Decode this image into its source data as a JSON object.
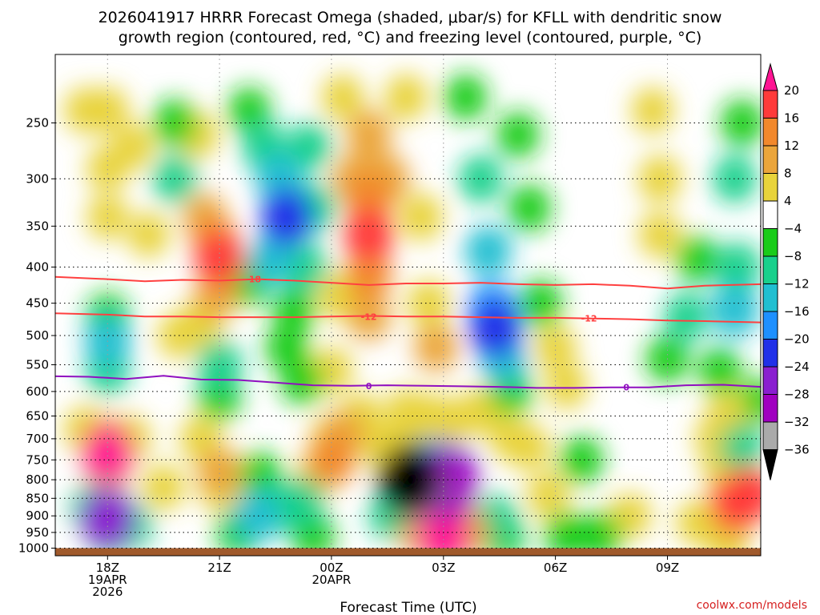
{
  "title_lines": [
    "2026041917 HRRR Forecast Omega (shaded, μbar/s) for KFLL with dendritic snow",
    "growth region (contoured, red, °C) and freezing level (contoured, purple, °C)"
  ],
  "credit": "coolwx.com/models",
  "chart_data": {
    "type": "heatmap",
    "title": "2026041917 HRRR Forecast Omega (shaded, μbar/s) for KFLL with dendritic snow growth region (contoured, red, °C) and freezing level (contoured, purple, °C)",
    "xlabel": "Forecast Time (UTC)",
    "ylabel": "",
    "xlim": [
      16.6,
      35.5
    ],
    "ylim": [
      1025,
      200
    ],
    "y_scale": "log-pressure",
    "x_ticks": [
      {
        "value": 18,
        "lines": [
          "18Z",
          "19APR",
          "2026"
        ]
      },
      {
        "value": 21,
        "lines": [
          "21Z"
        ]
      },
      {
        "value": 24,
        "lines": [
          "00Z",
          "20APR"
        ]
      },
      {
        "value": 27,
        "lines": [
          "03Z"
        ]
      },
      {
        "value": 30,
        "lines": [
          "06Z"
        ]
      },
      {
        "value": 33,
        "lines": [
          "09Z"
        ]
      }
    ],
    "y_ticks": [
      250,
      300,
      350,
      400,
      450,
      500,
      550,
      600,
      650,
      700,
      750,
      800,
      850,
      900,
      950,
      1000
    ],
    "colorbar": {
      "labels": [
        "20",
        "16",
        "12",
        "8",
        "4",
        "−4",
        "−8",
        "−12",
        "−16",
        "−20",
        "−24",
        "−28",
        "−32",
        "−36"
      ],
      "colors": [
        "#ff1493",
        "#ff3a3a",
        "#f2882c",
        "#eba53b",
        "#e8d33b",
        "#ffffff",
        "#19cc19",
        "#19d08c",
        "#21bfd1",
        "#1e90ff",
        "#2030e8",
        "#8a1fd0",
        "#a000c0",
        "#aaaaaa",
        "#000000"
      ]
    },
    "omega_cells": [
      {
        "x": 17.4,
        "p": 240,
        "v": 5
      },
      {
        "x": 18.0,
        "p": 240,
        "v": 6
      },
      {
        "x": 18.0,
        "p": 290,
        "v": 5
      },
      {
        "x": 18.0,
        "p": 340,
        "v": 4
      },
      {
        "x": 18.7,
        "p": 270,
        "v": 4
      },
      {
        "x": 19.1,
        "p": 360,
        "v": 4
      },
      {
        "x": 19.8,
        "p": 250,
        "v": -7
      },
      {
        "x": 19.8,
        "p": 300,
        "v": -8
      },
      {
        "x": 20.4,
        "p": 260,
        "v": 6
      },
      {
        "x": 20.6,
        "p": 340,
        "v": 8
      },
      {
        "x": 20.9,
        "p": 370,
        "v": 13
      },
      {
        "x": 21.0,
        "p": 390,
        "v": 17
      },
      {
        "x": 20.9,
        "p": 440,
        "v": 8
      },
      {
        "x": 20.5,
        "p": 480,
        "v": 7
      },
      {
        "x": 19.9,
        "p": 500,
        "v": 5
      },
      {
        "x": 21.8,
        "p": 240,
        "v": -6
      },
      {
        "x": 22.2,
        "p": 270,
        "v": -9
      },
      {
        "x": 22.6,
        "p": 300,
        "v": -14
      },
      {
        "x": 22.8,
        "p": 340,
        "v": -21
      },
      {
        "x": 22.4,
        "p": 390,
        "v": -12
      },
      {
        "x": 21.8,
        "p": 420,
        "v": -7
      },
      {
        "x": 23.4,
        "p": 270,
        "v": -8
      },
      {
        "x": 23.5,
        "p": 330,
        "v": -10
      },
      {
        "x": 23.3,
        "p": 400,
        "v": -8
      },
      {
        "x": 23.0,
        "p": 460,
        "v": -6
      },
      {
        "x": 22.8,
        "p": 520,
        "v": -6
      },
      {
        "x": 23.2,
        "p": 580,
        "v": -6
      },
      {
        "x": 24.3,
        "p": 230,
        "v": 5
      },
      {
        "x": 24.6,
        "p": 300,
        "v": 8
      },
      {
        "x": 25.0,
        "p": 260,
        "v": 10
      },
      {
        "x": 25.0,
        "p": 320,
        "v": 14
      },
      {
        "x": 25.0,
        "p": 360,
        "v": 18
      },
      {
        "x": 25.0,
        "p": 410,
        "v": 12
      },
      {
        "x": 25.0,
        "p": 470,
        "v": 8
      },
      {
        "x": 25.5,
        "p": 300,
        "v": 9
      },
      {
        "x": 26.0,
        "p": 230,
        "v": 6
      },
      {
        "x": 26.4,
        "p": 340,
        "v": 7
      },
      {
        "x": 26.6,
        "p": 450,
        "v": 6
      },
      {
        "x": 26.8,
        "p": 520,
        "v": 8
      },
      {
        "x": 24.2,
        "p": 440,
        "v": 6
      },
      {
        "x": 24.0,
        "p": 560,
        "v": 5
      },
      {
        "x": 27.6,
        "p": 230,
        "v": -6
      },
      {
        "x": 28.0,
        "p": 300,
        "v": -8
      },
      {
        "x": 28.2,
        "p": 380,
        "v": -12
      },
      {
        "x": 28.3,
        "p": 460,
        "v": -17
      },
      {
        "x": 28.4,
        "p": 490,
        "v": -21
      },
      {
        "x": 28.6,
        "p": 540,
        "v": -12
      },
      {
        "x": 28.8,
        "p": 600,
        "v": -7
      },
      {
        "x": 29.3,
        "p": 330,
        "v": -7
      },
      {
        "x": 29.6,
        "p": 450,
        "v": -7
      },
      {
        "x": 29.0,
        "p": 260,
        "v": -6
      },
      {
        "x": 30.0,
        "p": 520,
        "v": 5
      },
      {
        "x": 30.3,
        "p": 590,
        "v": 4
      },
      {
        "x": 32.6,
        "p": 240,
        "v": 5
      },
      {
        "x": 32.8,
        "p": 300,
        "v": 7
      },
      {
        "x": 32.8,
        "p": 360,
        "v": 6
      },
      {
        "x": 33.8,
        "p": 390,
        "v": -6
      },
      {
        "x": 33.5,
        "p": 470,
        "v": -8
      },
      {
        "x": 33.0,
        "p": 540,
        "v": -7
      },
      {
        "x": 34.8,
        "p": 300,
        "v": -8
      },
      {
        "x": 35.0,
        "p": 250,
        "v": -7
      },
      {
        "x": 34.9,
        "p": 400,
        "v": -10
      },
      {
        "x": 34.8,
        "p": 460,
        "v": -15
      },
      {
        "x": 34.4,
        "p": 560,
        "v": -6
      },
      {
        "x": 18.0,
        "p": 470,
        "v": -7
      },
      {
        "x": 18.0,
        "p": 510,
        "v": -12
      },
      {
        "x": 18.0,
        "p": 560,
        "v": -8
      },
      {
        "x": 21.0,
        "p": 550,
        "v": -10
      },
      {
        "x": 21.0,
        "p": 610,
        "v": -7
      },
      {
        "x": 18.0,
        "p": 710,
        "v": 12
      },
      {
        "x": 18.0,
        "p": 740,
        "v": 20
      },
      {
        "x": 18.0,
        "p": 800,
        "v": 7
      },
      {
        "x": 17.4,
        "p": 680,
        "v": 6
      },
      {
        "x": 18.6,
        "p": 700,
        "v": 6
      },
      {
        "x": 18.0,
        "p": 890,
        "v": -14
      },
      {
        "x": 18.0,
        "p": 910,
        "v": -25
      },
      {
        "x": 18.0,
        "p": 950,
        "v": -9
      },
      {
        "x": 17.6,
        "p": 880,
        "v": -8
      },
      {
        "x": 18.6,
        "p": 930,
        "v": -8
      },
      {
        "x": 19.5,
        "p": 820,
        "v": 5
      },
      {
        "x": 20.5,
        "p": 700,
        "v": 5
      },
      {
        "x": 21.0,
        "p": 780,
        "v": 10
      },
      {
        "x": 21.0,
        "p": 820,
        "v": 6
      },
      {
        "x": 22.1,
        "p": 790,
        "v": -7
      },
      {
        "x": 22.5,
        "p": 880,
        "v": -9
      },
      {
        "x": 23.2,
        "p": 860,
        "v": -9
      },
      {
        "x": 22.0,
        "p": 900,
        "v": -13
      },
      {
        "x": 23.5,
        "p": 960,
        "v": -7
      },
      {
        "x": 21.5,
        "p": 950,
        "v": -7
      },
      {
        "x": 24.0,
        "p": 700,
        "v": 7
      },
      {
        "x": 24.3,
        "p": 690,
        "v": 10
      },
      {
        "x": 24.0,
        "p": 750,
        "v": 14
      },
      {
        "x": 24.8,
        "p": 650,
        "v": 5
      },
      {
        "x": 23.6,
        "p": 790,
        "v": 5
      },
      {
        "x": 25.4,
        "p": 720,
        "v": 5
      },
      {
        "x": 25.9,
        "p": 700,
        "v": 6
      },
      {
        "x": 26.0,
        "p": 640,
        "v": 5
      },
      {
        "x": 26.6,
        "p": 650,
        "v": 5
      },
      {
        "x": 27.2,
        "p": 660,
        "v": 6
      },
      {
        "x": 28.0,
        "p": 640,
        "v": 6
      },
      {
        "x": 28.8,
        "p": 700,
        "v": 5
      },
      {
        "x": 29.3,
        "p": 720,
        "v": 5
      },
      {
        "x": 26.0,
        "p": 830,
        "v": -10
      },
      {
        "x": 26.5,
        "p": 760,
        "v": -13
      },
      {
        "x": 27.0,
        "p": 770,
        "v": -17
      },
      {
        "x": 27.2,
        "p": 790,
        "v": -26
      },
      {
        "x": 27.1,
        "p": 820,
        "v": -30
      },
      {
        "x": 26.2,
        "p": 810,
        "v": -34
      },
      {
        "x": 26.1,
        "p": 800,
        "v": -39
      },
      {
        "x": 26.6,
        "p": 870,
        "v": -12
      },
      {
        "x": 25.6,
        "p": 900,
        "v": -8
      },
      {
        "x": 27.0,
        "p": 930,
        "v": 19
      },
      {
        "x": 27.0,
        "p": 960,
        "v": 21
      },
      {
        "x": 27.6,
        "p": 950,
        "v": 10
      },
      {
        "x": 26.4,
        "p": 950,
        "v": 8
      },
      {
        "x": 28.4,
        "p": 910,
        "v": -8
      },
      {
        "x": 28.6,
        "p": 960,
        "v": -7
      },
      {
        "x": 29.8,
        "p": 840,
        "v": 5
      },
      {
        "x": 30.7,
        "p": 750,
        "v": -7
      },
      {
        "x": 30.3,
        "p": 960,
        "v": -7
      },
      {
        "x": 31.2,
        "p": 960,
        "v": -6
      },
      {
        "x": 32.0,
        "p": 900,
        "v": 5
      },
      {
        "x": 34.6,
        "p": 650,
        "v": 7
      },
      {
        "x": 34.3,
        "p": 700,
        "v": 6
      },
      {
        "x": 35.0,
        "p": 720,
        "v": -8
      },
      {
        "x": 34.8,
        "p": 860,
        "v": 16
      },
      {
        "x": 35.2,
        "p": 840,
        "v": 18
      },
      {
        "x": 34.8,
        "p": 900,
        "v": 8
      },
      {
        "x": 33.8,
        "p": 920,
        "v": 5
      },
      {
        "x": 34.5,
        "p": 770,
        "v": 5
      },
      {
        "x": 34.6,
        "p": 980,
        "v": 5
      },
      {
        "x": 35.4,
        "p": 620,
        "v": -6
      }
    ],
    "contours": [
      {
        "name": "dendritic -18C",
        "label": "-18",
        "color": "#ff4040",
        "x": [
          16.6,
          18,
          19,
          20,
          21,
          22,
          23,
          24,
          25,
          26,
          27,
          28,
          29,
          30,
          31,
          32,
          33,
          34,
          35.5
        ],
        "p": [
          413,
          416,
          419,
          417,
          418,
          416,
          418,
          421,
          424,
          422,
          422,
          421,
          423,
          424,
          423,
          425,
          429,
          425,
          423
        ]
      },
      {
        "name": "dendritic -12C",
        "label": "-12",
        "color": "#ff4040",
        "x": [
          16.6,
          18,
          19,
          20,
          21,
          22,
          23,
          24,
          25,
          26,
          27,
          28,
          29,
          30,
          31,
          32,
          33,
          34,
          35.5
        ],
        "p": [
          465,
          467,
          470,
          470,
          471,
          471,
          471,
          470,
          469,
          470,
          470,
          471,
          472,
          472,
          473,
          474,
          476,
          477,
          479
        ]
      },
      {
        "name": "freezing level 0C",
        "label": "0",
        "color": "#9010c0",
        "x": [
          16.6,
          17.5,
          18.5,
          19.5,
          20.5,
          21.5,
          22.5,
          23.5,
          24.5,
          25.5,
          26.5,
          27.5,
          28.5,
          29.5,
          30.5,
          31.5,
          32.5,
          33.5,
          34.5,
          35.5
        ],
        "p": [
          571,
          572,
          576,
          570,
          577,
          578,
          583,
          588,
          589,
          588,
          589,
          590,
          591,
          593,
          593,
          592,
          592,
          588,
          587,
          591
        ]
      }
    ],
    "contour_labels": [
      {
        "text": "-18",
        "x": 21.9,
        "p": 416
      },
      {
        "text": "-12",
        "x": 25.0,
        "p": 470
      },
      {
        "text": "-12",
        "x": 30.9,
        "p": 473
      },
      {
        "text": "0",
        "x": 25.0,
        "p": 589
      },
      {
        "text": "0",
        "x": 31.9,
        "p": 592
      }
    ],
    "terrain_band": {
      "from": 1000,
      "to": 1025,
      "color": "#a05a2c"
    }
  }
}
